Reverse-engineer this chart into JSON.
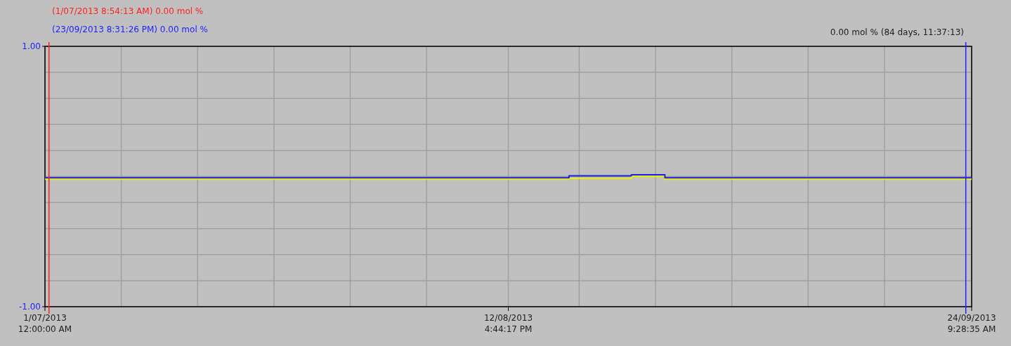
{
  "chart_data": {
    "type": "step",
    "xlim": [
      "2013-07-01T00:00:00",
      "2013-09-24T09:28:35"
    ],
    "ylim": [
      -1,
      1
    ],
    "xticks": [
      {
        "value": "2013-07-01T00:00:00",
        "label": "1/07/2013\n12:00:00 AM"
      },
      {
        "value": "2013-07-08T00:47:23",
        "label": null
      },
      {
        "value": "2013-07-15T01:34:46",
        "label": null
      },
      {
        "value": "2013-07-22T02:22:09",
        "label": null
      },
      {
        "value": "2013-07-29T03:09:32",
        "label": null
      },
      {
        "value": "2013-08-05T03:56:55",
        "label": null
      },
      {
        "value": "2013-08-12T16:44:17",
        "label": "12/08/2013\n4:44:17 PM"
      },
      {
        "value": "2013-08-19T05:31:40",
        "label": null
      },
      {
        "value": "2013-08-26T06:19:03",
        "label": null
      },
      {
        "value": "2013-09-02T07:06:26",
        "label": null
      },
      {
        "value": "2013-09-09T07:53:49",
        "label": null
      },
      {
        "value": "2013-09-16T08:41:12",
        "label": null
      },
      {
        "value": "2013-09-24T09:28:35",
        "label": "24/09/2013\n9:28:35 AM"
      }
    ],
    "yticks": [
      {
        "value": -1,
        "label": "-1.00"
      },
      {
        "value": -0.8,
        "label": null
      },
      {
        "value": -0.6,
        "label": null
      },
      {
        "value": -0.4,
        "label": null
      },
      {
        "value": -0.2,
        "label": null
      },
      {
        "value": 0,
        "label": null
      },
      {
        "value": 0.2,
        "label": null
      },
      {
        "value": 0.4,
        "label": null
      },
      {
        "value": 0.6,
        "label": null
      },
      {
        "value": 0.8,
        "label": null
      },
      {
        "value": 1,
        "label": "1.00"
      }
    ],
    "grid": true,
    "series": [
      {
        "color": "#f0f000",
        "x": [
          "2013-07-01T00:00:00",
          "2013-08-18T07:00",
          "2013-08-24T01:00",
          "2013-08-27T03:00",
          "2013-09-24T09:28:35"
        ],
        "values": [
          -0.02,
          -0.015,
          0,
          -0.02,
          -0.02
        ]
      },
      {
        "color": "#2020e0",
        "x": [
          "2013-07-01T00:00:00",
          "2013-08-18T07:00",
          "2013-08-24T01:00",
          "2013-08-27T03:00",
          "2013-09-24T09:28:35"
        ],
        "values": [
          -0.01,
          0.005,
          0.013,
          -0.01,
          -0.01
        ]
      }
    ],
    "ref_lines": [
      {
        "axis": "x",
        "value": "2013-07-01T08:54:13",
        "label": "(1/07/2013 8:54:13 AM) 0.00 mol %",
        "color": "#ff2020"
      },
      {
        "axis": "x",
        "value": "2013-09-23T20:31:26",
        "label": "(23/09/2013 8:31:26 PM) 0.00 mol %",
        "color": "#2020ff"
      }
    ],
    "annotations": [
      "0.00 mol % (84 days, 11:37:13)"
    ]
  }
}
